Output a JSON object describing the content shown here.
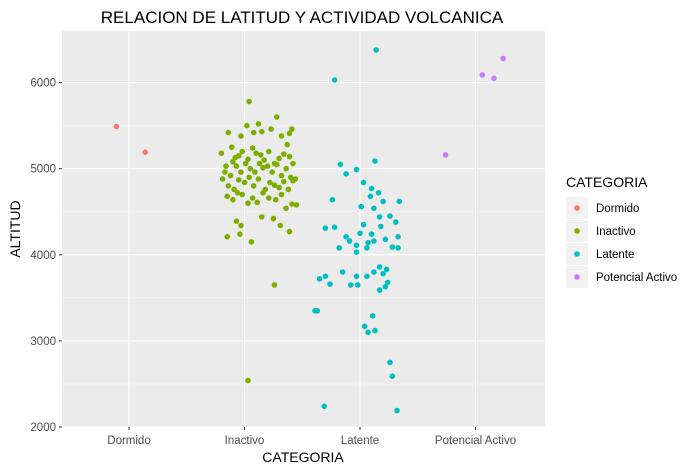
{
  "chart_data": {
    "type": "scatter",
    "title": "RELACION DE LATITUD Y ACTIVIDAD VOLCANICA",
    "xlabel": "CATEGORIA",
    "ylabel": "ALTITUD",
    "categories": [
      "Dormido",
      "Inactivo",
      "Latente",
      "Potencial Activo"
    ],
    "yticks": [
      2000,
      3000,
      4000,
      5000,
      6000
    ],
    "ytick_labels": [
      "2000",
      "3000",
      "4000",
      "5000",
      "6000"
    ],
    "ylim": [
      2000,
      6500
    ],
    "grid": true,
    "legend": {
      "title": "CATEGORIA",
      "placement": "right"
    },
    "series": [
      {
        "name": "Dormido",
        "color": "#F8766D",
        "points": [
          [
            0.89,
            5490
          ],
          [
            1.14,
            5190
          ]
        ]
      },
      {
        "name": "Inactivo",
        "color": "#7CAE00",
        "points": [
          [
            1.86,
            5420
          ],
          [
            1.89,
            5250
          ],
          [
            1.92,
            5130
          ],
          [
            1.97,
            5380
          ],
          [
            2.02,
            5500
          ],
          [
            2.04,
            5780
          ],
          [
            2.08,
            5420
          ],
          [
            2.12,
            5520
          ],
          [
            2.15,
            5430
          ],
          [
            2.23,
            5460
          ],
          [
            2.28,
            5600
          ],
          [
            2.32,
            5380
          ],
          [
            2.39,
            5410
          ],
          [
            2.41,
            5460
          ],
          [
            2.37,
            5280
          ],
          [
            1.8,
            5180
          ],
          [
            1.84,
            5030
          ],
          [
            1.9,
            5080
          ],
          [
            1.95,
            5150
          ],
          [
            1.98,
            5200
          ],
          [
            2.03,
            5110
          ],
          [
            2.07,
            5240
          ],
          [
            2.1,
            5180
          ],
          [
            2.14,
            5160
          ],
          [
            2.17,
            5100
          ],
          [
            2.21,
            5200
          ],
          [
            2.26,
            5060
          ],
          [
            2.3,
            5120
          ],
          [
            2.34,
            5170
          ],
          [
            2.39,
            5140
          ],
          [
            2.42,
            5060
          ],
          [
            1.83,
            4960
          ],
          [
            1.88,
            4920
          ],
          [
            1.93,
            5030
          ],
          [
            1.97,
            4960
          ],
          [
            2.01,
            5060
          ],
          [
            2.05,
            5000
          ],
          [
            2.09,
            4960
          ],
          [
            2.13,
            5060
          ],
          [
            2.16,
            5010
          ],
          [
            2.2,
            5030
          ],
          [
            2.24,
            4960
          ],
          [
            2.28,
            5050
          ],
          [
            2.32,
            4920
          ],
          [
            2.36,
            5000
          ],
          [
            2.4,
            4900
          ],
          [
            2.44,
            4880
          ],
          [
            1.81,
            4880
          ],
          [
            1.86,
            4800
          ],
          [
            1.91,
            4760
          ],
          [
            1.95,
            4870
          ],
          [
            2.0,
            4840
          ],
          [
            2.04,
            4900
          ],
          [
            2.08,
            4800
          ],
          [
            2.12,
            4880
          ],
          [
            2.18,
            4760
          ],
          [
            2.22,
            4840
          ],
          [
            2.26,
            4810
          ],
          [
            2.3,
            4780
          ],
          [
            2.34,
            4850
          ],
          [
            2.38,
            4760
          ],
          [
            2.42,
            4860
          ],
          [
            1.85,
            4680
          ],
          [
            1.9,
            4640
          ],
          [
            1.94,
            4720
          ],
          [
            1.98,
            4700
          ],
          [
            2.03,
            4600
          ],
          [
            2.07,
            4660
          ],
          [
            2.11,
            4610
          ],
          [
            2.16,
            4720
          ],
          [
            2.21,
            4660
          ],
          [
            2.27,
            4640
          ],
          [
            2.32,
            4700
          ],
          [
            2.36,
            4540
          ],
          [
            2.41,
            4590
          ],
          [
            2.45,
            4580
          ],
          [
            1.93,
            4390
          ],
          [
            1.97,
            4340
          ],
          [
            2.15,
            4440
          ],
          [
            2.25,
            4420
          ],
          [
            2.31,
            4340
          ],
          [
            2.39,
            4270
          ],
          [
            1.96,
            4240
          ],
          [
            1.85,
            4210
          ],
          [
            2.06,
            4150
          ],
          [
            2.26,
            3650
          ],
          [
            2.03,
            2540
          ]
        ]
      },
      {
        "name": "Latente",
        "color": "#00BFC4",
        "points": [
          [
            3.14,
            6380
          ],
          [
            2.78,
            6030
          ],
          [
            3.13,
            5090
          ],
          [
            2.83,
            5050
          ],
          [
            2.97,
            4990
          ],
          [
            2.88,
            4940
          ],
          [
            3.03,
            4840
          ],
          [
            3.1,
            4770
          ],
          [
            3.16,
            4720
          ],
          [
            3.09,
            4680
          ],
          [
            3.2,
            4620
          ],
          [
            3.34,
            4620
          ],
          [
            2.76,
            4640
          ],
          [
            3.01,
            4560
          ],
          [
            3.12,
            4540
          ],
          [
            3.17,
            4440
          ],
          [
            3.26,
            4450
          ],
          [
            3.03,
            4350
          ],
          [
            3.18,
            4330
          ],
          [
            3.31,
            4380
          ],
          [
            2.7,
            4310
          ],
          [
            2.78,
            4320
          ],
          [
            2.88,
            4210
          ],
          [
            3.0,
            4250
          ],
          [
            3.1,
            4240
          ],
          [
            3.22,
            4180
          ],
          [
            3.33,
            4210
          ],
          [
            2.91,
            4160
          ],
          [
            2.97,
            4110
          ],
          [
            3.07,
            4140
          ],
          [
            3.12,
            4160
          ],
          [
            3.28,
            4090
          ],
          [
            3.33,
            4080
          ],
          [
            2.82,
            4080
          ],
          [
            2.97,
            4030
          ],
          [
            3.06,
            4080
          ],
          [
            3.17,
            3860
          ],
          [
            3.23,
            3830
          ],
          [
            3.12,
            3800
          ],
          [
            3.2,
            3780
          ],
          [
            2.85,
            3800
          ],
          [
            2.97,
            3750
          ],
          [
            3.06,
            3750
          ],
          [
            2.65,
            3720
          ],
          [
            2.7,
            3750
          ],
          [
            2.74,
            3660
          ],
          [
            2.92,
            3650
          ],
          [
            2.98,
            3650
          ],
          [
            3.17,
            3590
          ],
          [
            3.22,
            3630
          ],
          [
            3.24,
            3680
          ],
          [
            2.61,
            3350
          ],
          [
            2.63,
            3350
          ],
          [
            3.11,
            3290
          ],
          [
            3.04,
            3170
          ],
          [
            3.07,
            3100
          ],
          [
            3.13,
            3120
          ],
          [
            3.26,
            2750
          ],
          [
            3.28,
            2590
          ],
          [
            2.69,
            2240
          ],
          [
            3.32,
            2190
          ]
        ]
      },
      {
        "name": "Potencial Activo",
        "color": "#C77CFF",
        "points": [
          [
            3.74,
            5160
          ],
          [
            4.06,
            6090
          ],
          [
            4.16,
            6050
          ],
          [
            4.24,
            6280
          ]
        ]
      }
    ]
  }
}
